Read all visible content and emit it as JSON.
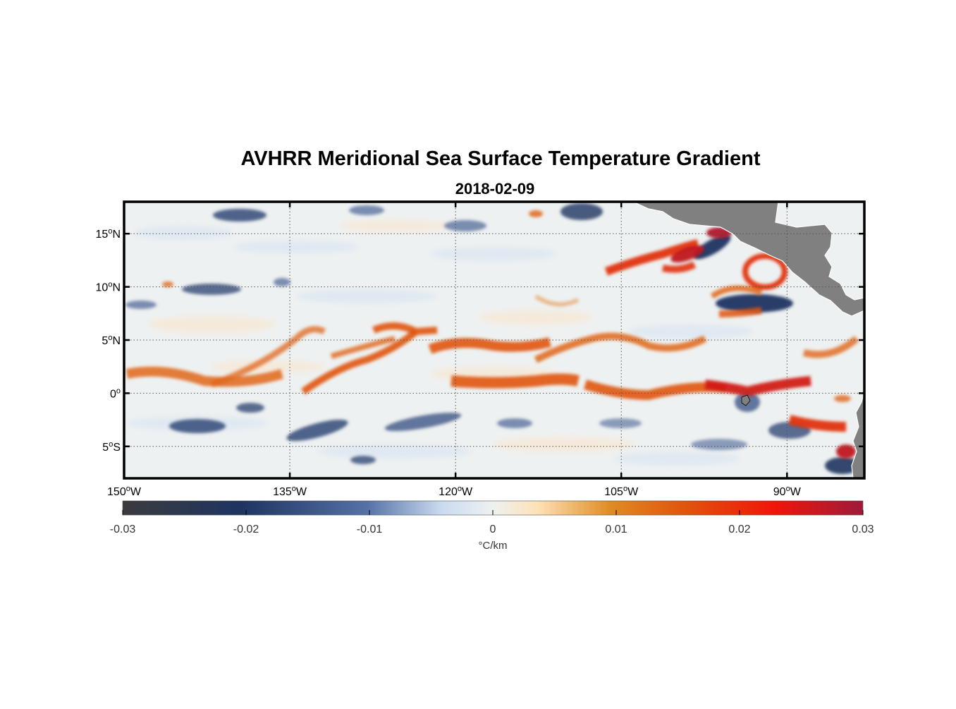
{
  "title": "AVHRR Meridional Sea Surface Temperature Gradient",
  "subtitle": "2018-02-09",
  "map": {
    "lon_range": [
      -150,
      -83
    ],
    "lat_range": [
      -8,
      18
    ],
    "grid": "dotted",
    "lon_ticks": [
      {
        "value": -150,
        "num": "150",
        "hem": "W"
      },
      {
        "value": -135,
        "num": "135",
        "hem": "W"
      },
      {
        "value": -120,
        "num": "120",
        "hem": "W"
      },
      {
        "value": -105,
        "num": "105",
        "hem": "W"
      },
      {
        "value": -90,
        "num": "90",
        "hem": "W"
      }
    ],
    "lat_ticks": [
      {
        "value": 15,
        "num": "15",
        "hem": "N"
      },
      {
        "value": 10,
        "num": "10",
        "hem": "N"
      },
      {
        "value": 5,
        "num": "5",
        "hem": "N"
      },
      {
        "value": 0,
        "num": "0",
        "hem": ""
      },
      {
        "value": -5,
        "num": "5",
        "hem": "S"
      }
    ],
    "land_color": "#808080",
    "ocean_background": "#eef1f1"
  },
  "colorbar": {
    "min": -0.03,
    "max": 0.03,
    "ticks": [
      {
        "value": -0.03,
        "label": "-0.03"
      },
      {
        "value": -0.02,
        "label": "-0.02"
      },
      {
        "value": -0.01,
        "label": "-0.01"
      },
      {
        "value": 0,
        "label": "0"
      },
      {
        "value": 0.01,
        "label": "0.01"
      },
      {
        "value": 0.02,
        "label": "0.02"
      },
      {
        "value": 0.03,
        "label": "0.03"
      }
    ],
    "units": "°C/km",
    "colors": [
      "#3b3b3d",
      "#1f3461",
      "#5571a6",
      "#c9daf0",
      "#eef1f1",
      "#fde2b8",
      "#e08a22",
      "#e0540c",
      "#f0160a",
      "#9e1a3a"
    ]
  }
}
